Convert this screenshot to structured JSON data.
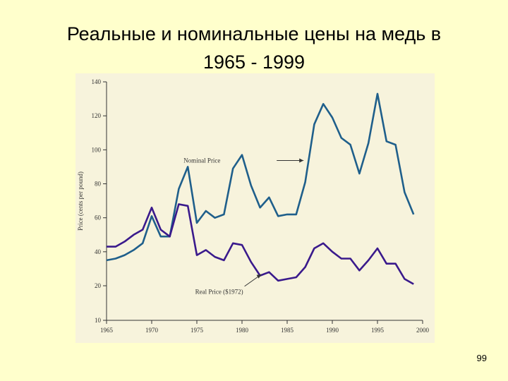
{
  "slide": {
    "title_line1": "Реальные и номинальные цены на медь в",
    "title_line2": "1965 - 1999",
    "page_number": "99"
  },
  "chart_data": {
    "type": "line",
    "ylabel": "Price (cents per pound)",
    "xlim": [
      1965,
      2000
    ],
    "ylim": [
      10,
      140
    ],
    "xticks": [
      1965,
      1970,
      1975,
      1980,
      1985,
      1990,
      1995,
      2000
    ],
    "yticks": [
      10,
      20,
      40,
      60,
      80,
      100,
      120,
      140
    ],
    "grid": false,
    "legend": "inline annotations with arrows",
    "colors": {
      "nominal": "#1f5f8b",
      "real": "#3a1a8c",
      "panel": "#f7f3dc",
      "background": "#ffffcc"
    },
    "series": [
      {
        "name": "Nominal Price",
        "x": [
          1965,
          1966,
          1967,
          1968,
          1969,
          1970,
          1971,
          1972,
          1973,
          1974,
          1975,
          1976,
          1977,
          1978,
          1979,
          1980,
          1981,
          1982,
          1983,
          1984,
          1985,
          1986,
          1987,
          1988,
          1989,
          1990,
          1991,
          1992,
          1993,
          1994,
          1995,
          1996,
          1997,
          1998,
          1999
        ],
        "values": [
          35,
          36,
          38,
          41,
          45,
          61,
          49,
          49,
          77,
          90,
          57,
          64,
          60,
          62,
          89,
          97,
          79,
          66,
          72,
          61,
          62,
          62,
          81,
          115,
          127,
          119,
          107,
          103,
          86,
          104,
          133,
          105,
          103,
          75,
          62
        ]
      },
      {
        "name": "Real Price ($1972)",
        "x": [
          1965,
          1966,
          1967,
          1968,
          1969,
          1970,
          1971,
          1972,
          1973,
          1974,
          1975,
          1976,
          1977,
          1978,
          1979,
          1980,
          1981,
          1982,
          1983,
          1984,
          1985,
          1986,
          1987,
          1988,
          1989,
          1990,
          1991,
          1992,
          1993,
          1994,
          1995,
          1996,
          1997,
          1998,
          1999
        ],
        "values": [
          43,
          43,
          46,
          50,
          53,
          66,
          53,
          49,
          68,
          67,
          38,
          41,
          37,
          35,
          45,
          44,
          34,
          26,
          28,
          23,
          24,
          25,
          31,
          42,
          45,
          40,
          36,
          36,
          29,
          35,
          42,
          33,
          33,
          24,
          21
        ]
      }
    ],
    "annotations": [
      {
        "text": "Nominal Price",
        "series": 0,
        "x": 1979,
        "y": 97
      },
      {
        "text": "Real Price ($1972)",
        "series": 1,
        "x": 1982,
        "y": 28
      }
    ]
  }
}
